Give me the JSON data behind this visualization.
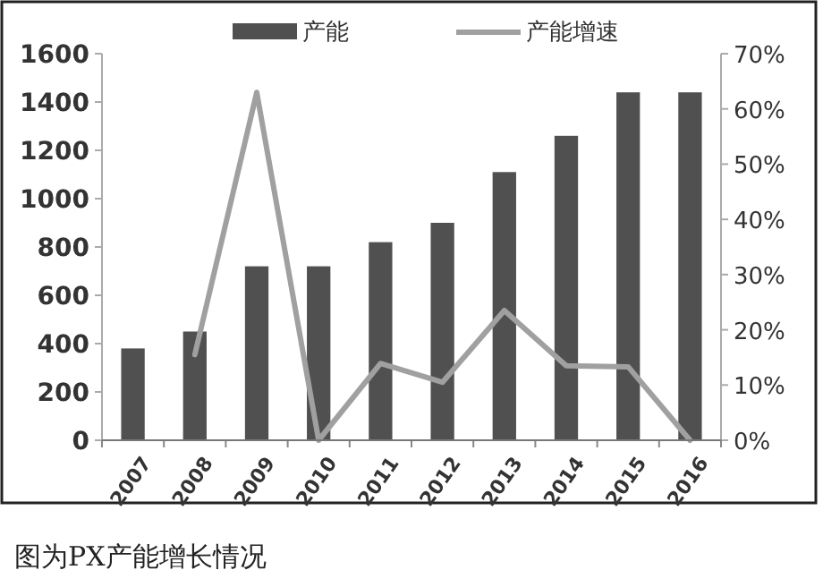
{
  "chart_data": {
    "type": "bar",
    "categories": [
      "2007",
      "2008",
      "2009",
      "2010",
      "2011",
      "2012",
      "2013",
      "2014",
      "2015",
      "2016"
    ],
    "series": [
      {
        "name": "产能",
        "color": "#505050",
        "values": [
          380,
          450,
          720,
          720,
          820,
          900,
          1110,
          1260,
          1440,
          1440
        ]
      },
      {
        "name": "产能增速",
        "type": "line",
        "axis": "y2",
        "color": "#a0a0a0",
        "values": [
          null,
          15.5,
          63,
          0,
          13.9,
          10.5,
          23.5,
          13.5,
          13.3,
          0
        ]
      }
    ],
    "ylim": [
      0,
      1600
    ],
    "yticks": [
      0,
      200,
      400,
      600,
      800,
      1000,
      1200,
      1400,
      1600
    ],
    "y2lim": [
      0,
      70
    ],
    "y2ticks": [
      {
        "value": 0,
        "label": "0%"
      },
      {
        "value": 10,
        "label": "10%"
      },
      {
        "value": 20,
        "label": "20%"
      },
      {
        "value": 30,
        "label": "30%"
      },
      {
        "value": 40,
        "label": "40%"
      },
      {
        "value": 50,
        "label": "50%"
      },
      {
        "value": 60,
        "label": "60%"
      },
      {
        "value": 70,
        "label": "70%"
      }
    ],
    "legend": "top",
    "grid": false,
    "marker": "none",
    "line_style": "solid",
    "annotations": [
      "图为PX产能增长情况"
    ]
  }
}
